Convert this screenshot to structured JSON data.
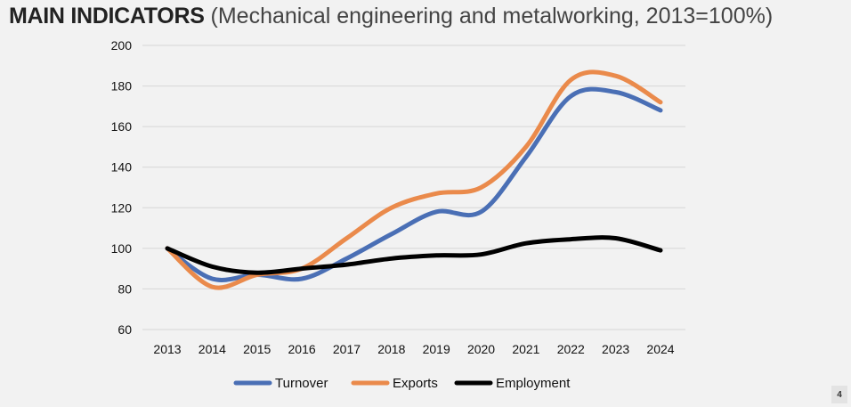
{
  "header": {
    "title_bold": "MAIN INDICATORS",
    "title_rest": " (Mechanical engineering and metalworking, 2013=100%)"
  },
  "slide_number": "4",
  "chart_data": {
    "type": "line",
    "title": "MAIN INDICATORS (Mechanical engineering and metalworking, 2013=100%)",
    "x": [
      "2013",
      "2014",
      "2015",
      "2016",
      "2017",
      "2018",
      "2019",
      "2020",
      "2021",
      "2022",
      "2023",
      "2024"
    ],
    "ylim": [
      60,
      200
    ],
    "yticks": [
      60,
      80,
      100,
      120,
      140,
      160,
      180,
      200
    ],
    "grid": true,
    "legend": "bottom",
    "series": [
      {
        "name": "Turnover",
        "color": "#4a6fb5",
        "values": [
          100,
          85,
          87,
          85,
          95,
          107,
          118,
          118,
          145,
          175,
          177,
          168
        ]
      },
      {
        "name": "Exports",
        "color": "#ea8a4b",
        "values": [
          100,
          81,
          87,
          90,
          105,
          120,
          127,
          130,
          150,
          183,
          185,
          172
        ]
      },
      {
        "name": "Employment",
        "color": "#000000",
        "values": [
          100,
          91,
          88,
          90,
          92,
          95,
          96.5,
          97,
          102.5,
          104.5,
          105,
          99
        ]
      }
    ]
  }
}
